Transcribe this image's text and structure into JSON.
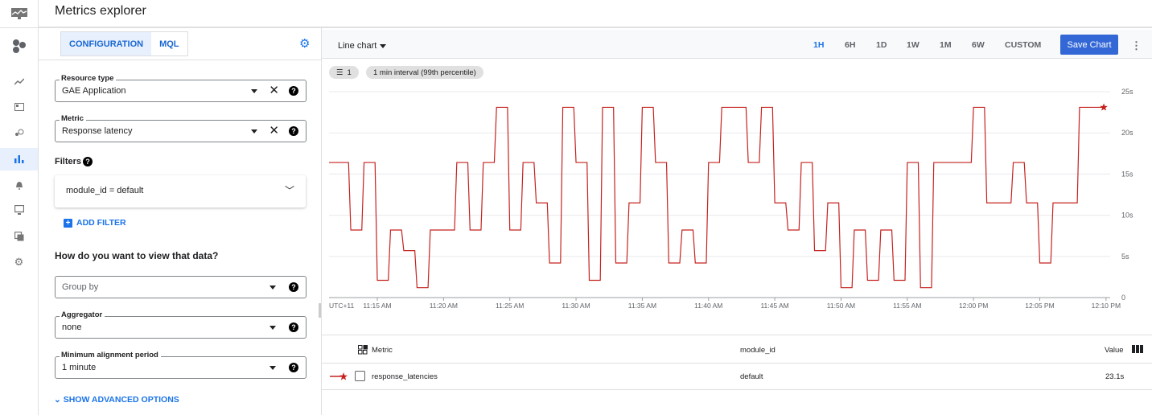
{
  "header": {
    "title": "Metrics explorer"
  },
  "rail": {
    "icons": [
      "monitoring-logo-icon",
      "project-icon",
      "overview-icon",
      "dashboards-icon",
      "services-icon",
      "metrics-explorer-icon",
      "alerting-icon",
      "uptime-checks-icon",
      "groups-icon",
      "settings-icon"
    ],
    "active": "metrics-explorer-icon"
  },
  "config": {
    "tabs": [
      {
        "label": "CONFIGURATION",
        "active": true
      },
      {
        "label": "MQL",
        "active": false
      }
    ],
    "resource_type": {
      "label": "Resource type",
      "value": "GAE Application"
    },
    "metric": {
      "label": "Metric",
      "value": "Response latency"
    },
    "filters_label": "Filters",
    "filter": "module_id = default",
    "add_filter": "ADD FILTER",
    "view_question": "How do you want to view that data?",
    "group_by": {
      "placeholder": "Group by"
    },
    "aggregator": {
      "label": "Aggregator",
      "value": "none"
    },
    "alignment": {
      "label": "Minimum alignment period",
      "value": "1 minute"
    },
    "advanced": "SHOW ADVANCED OPTIONS"
  },
  "toolbar": {
    "chart_type": "Line chart",
    "ranges": [
      "1H",
      "6H",
      "1D",
      "1W",
      "1M",
      "6W",
      "CUSTOM"
    ],
    "active_range": "1H",
    "save": "Save Chart",
    "filter_chip": "1",
    "interval_chip": "1 min interval (99th percentile)"
  },
  "colors": {
    "accent": "#1a73e8",
    "save_button": "#3367d6",
    "series": "#c5221f"
  },
  "chart_data": {
    "type": "line",
    "timezone_label": "UTC+11",
    "x_ticks": [
      "11:15 AM",
      "11:20 AM",
      "11:25 AM",
      "11:30 AM",
      "11:35 AM",
      "11:40 AM",
      "11:45 AM",
      "11:50 AM",
      "11:55 AM",
      "12:00 PM",
      "12:05 PM",
      "12:10 PM"
    ],
    "y_ticks": [
      "0",
      "5s",
      "10s",
      "15s",
      "20s",
      "25s"
    ],
    "ylim": [
      0,
      25
    ],
    "grid": true,
    "series": [
      {
        "name": "response_latencies",
        "unit": "s",
        "x": [
          "11:11",
          "11:12",
          "11:13",
          "11:14",
          "11:15",
          "11:16",
          "11:17",
          "11:18",
          "11:19",
          "11:20",
          "11:21",
          "11:22",
          "11:23",
          "11:24",
          "11:25",
          "11:26",
          "11:27",
          "11:28",
          "11:29",
          "11:30",
          "11:31",
          "11:32",
          "11:33",
          "11:34",
          "11:35",
          "11:36",
          "11:37",
          "11:38",
          "11:39",
          "11:40",
          "11:41",
          "11:42",
          "11:43",
          "11:44",
          "11:45",
          "11:46",
          "11:47",
          "11:48",
          "11:49",
          "11:50",
          "11:51",
          "11:52",
          "11:53",
          "11:54",
          "11:55",
          "11:56",
          "11:57",
          "11:58",
          "11:59",
          "12:00",
          "12:01",
          "12:02",
          "12:03",
          "12:04",
          "12:05",
          "12:06",
          "12:07",
          "12:08",
          "12:09"
        ],
        "values": [
          16.4,
          16.4,
          8.2,
          16.4,
          2.1,
          8.2,
          5.7,
          1.2,
          8.2,
          8.2,
          16.4,
          8.2,
          16.4,
          23.1,
          8.2,
          16.4,
          11.5,
          4.2,
          23.1,
          16.4,
          2.1,
          23.1,
          4.2,
          11.5,
          23.1,
          16.4,
          4.2,
          8.2,
          4.2,
          16.4,
          23.1,
          23.1,
          16.4,
          23.1,
          11.5,
          8.2,
          16.4,
          5.7,
          11.5,
          1.2,
          8.2,
          2.1,
          8.2,
          2.1,
          16.4,
          1.2,
          16.4,
          16.4,
          16.4,
          23.1,
          11.5,
          11.5,
          16.4,
          11.5,
          4.2,
          11.5,
          11.5,
          23.1,
          23.1
        ]
      }
    ]
  },
  "table": {
    "headers": {
      "metric": "Metric",
      "module_id": "module_id",
      "value": "Value"
    },
    "rows": [
      {
        "metric": "response_latencies",
        "module_id": "default",
        "value": "23.1s"
      }
    ]
  }
}
